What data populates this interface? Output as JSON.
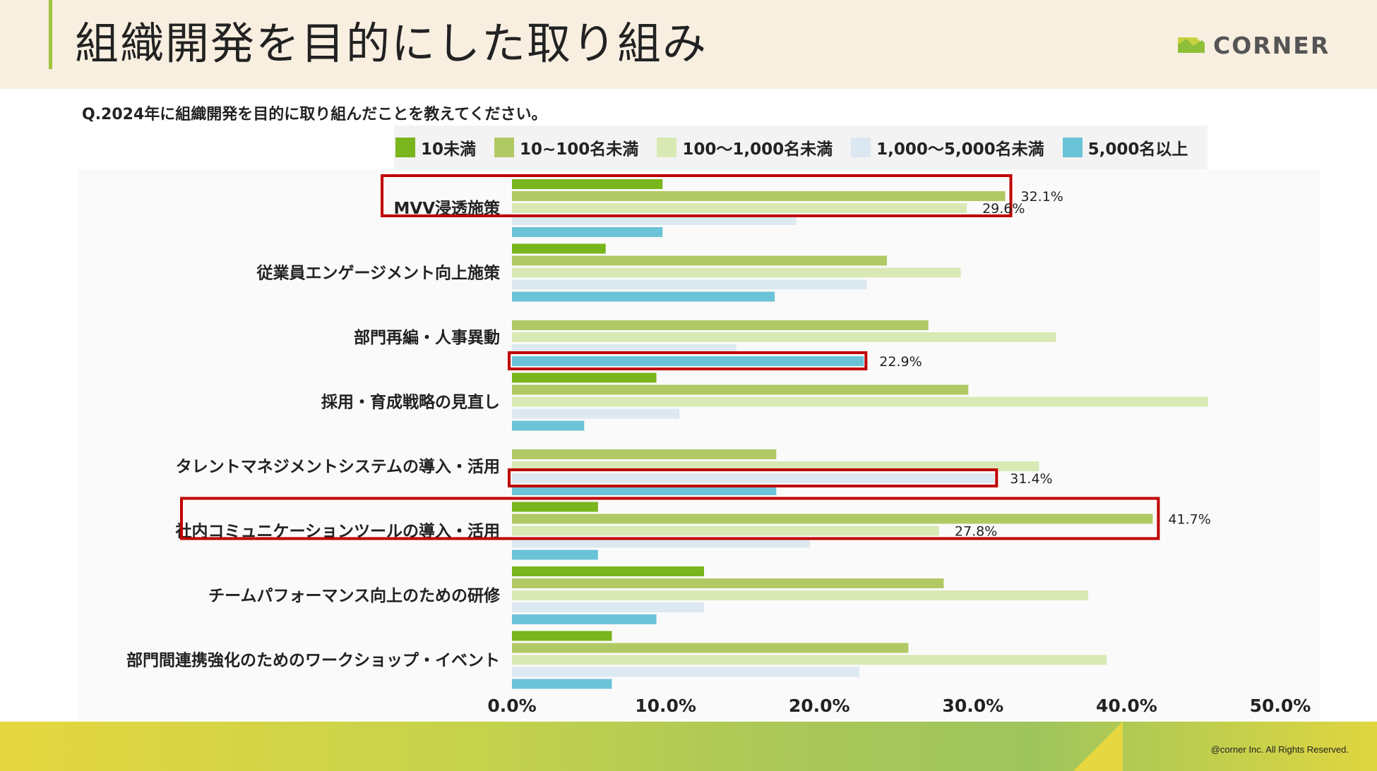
{
  "header": {
    "title": "組織開発を目的にした取り組み",
    "logo_text": "CORNER"
  },
  "question": "Q.2024年に組織開発を目的に取り組んだことを教えてください。",
  "footer": {
    "copyright": "@corner Inc. All Rights Reserved."
  },
  "colors": {
    "series": [
      "#79b51c",
      "#b1c964",
      "#d9e9b4",
      "#dde9f1",
      "#6bc3d7"
    ],
    "highlight": "#c00000"
  },
  "chart_data": {
    "type": "bar",
    "orientation": "horizontal",
    "categories": [
      "MVV浸透施策",
      "従業員エンゲージメント向上施策",
      "部門再編・人事異動",
      "採用・育成戦略の見直し",
      "タレントマネジメントシステムの導入・活用",
      "社内コミュニケーションツールの導入・活用",
      "チームパフォーマンス向上のための研修",
      "部門間連携強化のためのワークショップ・イベント"
    ],
    "series": [
      {
        "name": "10未満",
        "values": [
          9.8,
          6.1,
          0,
          9.4,
          0,
          5.6,
          12.5,
          6.5
        ]
      },
      {
        "name": "10~100名未満",
        "values": [
          32.1,
          24.4,
          27.1,
          29.7,
          17.2,
          41.7,
          28.1,
          25.8
        ]
      },
      {
        "name": "100〜1,000名未満",
        "values": [
          29.6,
          29.2,
          35.4,
          45.3,
          34.3,
          27.8,
          37.5,
          38.7
        ]
      },
      {
        "name": "1,000〜5,000名未満",
        "values": [
          18.5,
          23.1,
          14.6,
          10.9,
          31.4,
          19.4,
          12.5,
          22.6
        ]
      },
      {
        "name": "5,000名以上",
        "values": [
          9.8,
          17.1,
          22.9,
          4.7,
          17.2,
          5.6,
          9.4,
          6.5
        ]
      }
    ],
    "xlim": [
      0,
      50
    ],
    "xticks": [
      "0.0%",
      "10.0%",
      "20.0%",
      "30.0%",
      "40.0%",
      "50.0%"
    ],
    "annotations": [
      {
        "category": 0,
        "series": 1,
        "label": "32.1%"
      },
      {
        "category": 0,
        "series": 2,
        "label": "29.6%"
      },
      {
        "category": 2,
        "series": 4,
        "label": "22.9%"
      },
      {
        "category": 4,
        "series": 3,
        "label": "31.4%"
      },
      {
        "category": 5,
        "series": 1,
        "label": "41.7%"
      },
      {
        "category": 5,
        "series": 2,
        "label": "27.8%"
      }
    ],
    "highlights": [
      {
        "category": 0,
        "series_from": 0,
        "series_to": 2,
        "include_label": true,
        "value": 32.1
      },
      {
        "category": 2,
        "series_from": 4,
        "series_to": 4,
        "include_label": false,
        "value": 22.9
      },
      {
        "category": 4,
        "series_from": 3,
        "series_to": 3,
        "include_label": false,
        "value": 31.4
      },
      {
        "category": 5,
        "series_from": 0,
        "series_to": 2,
        "include_label": true,
        "value": 41.7
      }
    ]
  }
}
